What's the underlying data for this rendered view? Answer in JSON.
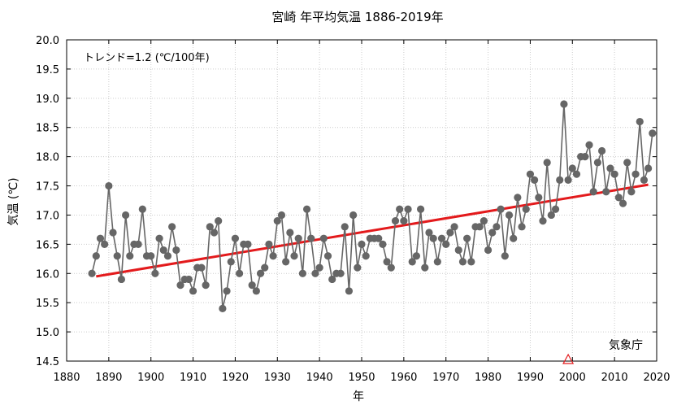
{
  "chart_data": {
    "type": "line",
    "title": "宮崎 年平均気温 1886-2019年",
    "xlabel": "年",
    "ylabel": "気温 (℃)",
    "annotation": "トレンド=1.2 (℃/100年)",
    "source_label": "気象庁",
    "xlim": [
      1880,
      2020
    ],
    "ylim": [
      14.5,
      20.0
    ],
    "x_ticks": [
      1880,
      1890,
      1900,
      1910,
      1920,
      1930,
      1940,
      1950,
      1960,
      1970,
      1980,
      1990,
      2000,
      2010,
      2020
    ],
    "y_ticks": [
      14.5,
      15.0,
      15.5,
      16.0,
      16.5,
      17.0,
      17.5,
      18.0,
      18.5,
      19.0,
      19.5,
      20.0
    ],
    "grid": true,
    "colors": {
      "series": "#666666",
      "trend": "#e31a1c",
      "marker_triangle": "#e31a1c",
      "frame": "#000000",
      "grid": "#cccccc"
    },
    "x_start": 1886,
    "values": [
      16.0,
      16.3,
      16.6,
      16.5,
      17.5,
      16.7,
      16.3,
      15.9,
      17.0,
      16.3,
      16.5,
      16.5,
      17.1,
      16.3,
      16.3,
      16.0,
      16.6,
      16.4,
      16.3,
      16.8,
      16.4,
      15.8,
      15.9,
      15.9,
      15.7,
      16.1,
      16.1,
      15.8,
      16.8,
      16.7,
      16.9,
      15.4,
      15.7,
      16.2,
      16.6,
      16.0,
      16.5,
      16.5,
      15.8,
      15.7,
      16.0,
      16.1,
      16.5,
      16.3,
      16.9,
      17.0,
      16.2,
      16.7,
      16.3,
      16.6,
      16.0,
      17.1,
      16.6,
      16.0,
      16.1,
      16.6,
      16.3,
      15.9,
      16.0,
      16.0,
      16.8,
      15.7,
      17.0,
      16.1,
      16.5,
      16.3,
      16.6,
      16.6,
      16.6,
      16.5,
      16.2,
      16.1,
      16.9,
      17.1,
      16.9,
      17.1,
      16.2,
      16.3,
      17.1,
      16.1,
      16.7,
      16.6,
      16.2,
      16.6,
      16.5,
      16.7,
      16.8,
      16.4,
      16.2,
      16.6,
      16.2,
      16.8,
      16.8,
      16.9,
      16.4,
      16.7,
      16.8,
      17.1,
      16.3,
      17.0,
      16.6,
      17.3,
      16.8,
      17.1,
      17.7,
      17.6,
      17.3,
      16.9,
      17.9,
      17.0,
      17.1,
      17.6,
      18.9,
      17.6,
      17.8,
      17.7,
      18.0,
      18.0,
      18.2,
      17.4,
      17.9,
      18.1,
      17.4,
      17.8,
      17.7,
      17.3,
      17.2,
      17.9,
      17.4,
      17.7,
      18.6,
      17.6,
      17.8,
      18.4
    ],
    "trend": {
      "x": [
        1887,
        2018
      ],
      "y": [
        15.95,
        17.52
      ]
    },
    "marker_year": 1999
  }
}
